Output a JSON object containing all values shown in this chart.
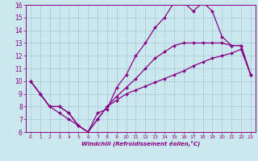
{
  "xlabel": "Windchill (Refroidissement éolien,°C)",
  "bg_color": "#cce8ef",
  "grid_color": "#aaccdd",
  "line_color": "#880088",
  "xlim": [
    -0.5,
    23.5
  ],
  "ylim": [
    6,
    16
  ],
  "xticks": [
    0,
    1,
    2,
    3,
    4,
    5,
    6,
    7,
    8,
    9,
    10,
    11,
    12,
    13,
    14,
    15,
    16,
    17,
    18,
    19,
    20,
    21,
    22,
    23
  ],
  "yticks": [
    6,
    7,
    8,
    9,
    10,
    11,
    12,
    13,
    14,
    15,
    16
  ],
  "series": [
    {
      "x": [
        0,
        1,
        2,
        3,
        4,
        5,
        6,
        7,
        8,
        9,
        10,
        11,
        12,
        13,
        14,
        15,
        16,
        17,
        18,
        19,
        20,
        21,
        22,
        23
      ],
      "y": [
        10,
        9,
        8,
        7.5,
        7,
        6.5,
        6,
        7.5,
        7.8,
        9.5,
        10.5,
        12,
        13,
        14.2,
        15,
        16.2,
        16.2,
        15.5,
        16.2,
        15.5,
        13.5,
        12.8,
        12.8,
        10.5
      ]
    },
    {
      "x": [
        0,
        1,
        2,
        3,
        4,
        5,
        6,
        7,
        8,
        9,
        10,
        11,
        12,
        13,
        14,
        15,
        16,
        17,
        18,
        19,
        20,
        21,
        22,
        23
      ],
      "y": [
        10,
        9,
        8,
        8,
        7.5,
        6.5,
        6,
        7,
        8,
        8.8,
        9.5,
        10.2,
        11,
        11.8,
        12.3,
        12.8,
        13,
        13,
        13,
        13,
        13,
        12.8,
        12.8,
        10.5
      ]
    },
    {
      "x": [
        0,
        1,
        2,
        3,
        4,
        5,
        6,
        7,
        8,
        9,
        10,
        11,
        12,
        13,
        14,
        15,
        16,
        17,
        18,
        19,
        20,
        21,
        22,
        23
      ],
      "y": [
        10,
        9,
        8,
        8,
        7.5,
        6.5,
        6,
        7,
        8,
        8.5,
        9,
        9.3,
        9.6,
        9.9,
        10.2,
        10.5,
        10.8,
        11.2,
        11.5,
        11.8,
        12.0,
        12.2,
        12.5,
        10.5
      ]
    }
  ]
}
